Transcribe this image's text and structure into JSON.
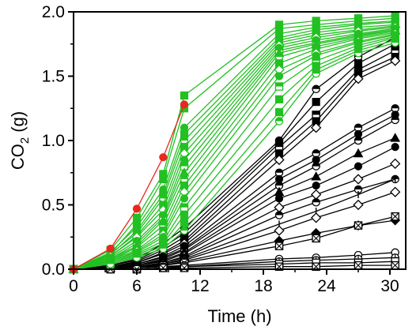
{
  "chart_data": {
    "type": "line",
    "xlabel": "Time (h)",
    "ylabel_main": "CO",
    "ylabel_sub": "2",
    "ylabel_unit": " (g)",
    "xlim": [
      0,
      31.5
    ],
    "ylim": [
      0,
      2.0
    ],
    "xticks": [
      0,
      6,
      12,
      18,
      24,
      30
    ],
    "yticks": [
      0.0,
      0.5,
      1.0,
      1.5,
      2.0
    ],
    "ytick_labels": [
      "0.0",
      "0.5",
      "1.0",
      "1.5",
      "2.0"
    ],
    "xtick_labels": [
      "0",
      "6",
      "12",
      "18",
      "24",
      "30"
    ],
    "grid": false,
    "colors": {
      "red": "#e8281e",
      "green": "#22c022",
      "black": "#000000"
    },
    "x": [
      0,
      3.5,
      6,
      8.5,
      10.5
    ],
    "series_red": [
      {
        "color": "red",
        "marker": "circle-filled",
        "values": [
          0.0,
          0.16,
          0.47,
          0.87,
          1.28
        ]
      }
    ],
    "x_full": [
      0,
      3.5,
      6,
      8.5,
      10.5,
      19.5,
      23,
      27,
      30.5
    ],
    "series_green": [
      {
        "color": "green",
        "marker": "square-filled",
        "values": [
          0.0,
          0.15,
          0.4,
          0.74,
          1.35,
          1.9,
          1.93,
          1.95,
          1.97
        ]
      },
      {
        "color": "green",
        "marker": "square-filled",
        "values": [
          0.0,
          0.12,
          0.35,
          0.7,
          1.25,
          1.87,
          1.9,
          1.93,
          1.95
        ]
      },
      {
        "color": "green",
        "marker": "circle-filled",
        "values": [
          0.0,
          0.13,
          0.33,
          0.62,
          1.1,
          1.83,
          1.88,
          1.91,
          1.93
        ]
      },
      {
        "color": "green",
        "marker": "square-filled",
        "values": [
          0.0,
          0.11,
          0.3,
          0.58,
          1.05,
          1.8,
          1.86,
          1.9,
          1.92
        ]
      },
      {
        "color": "green",
        "marker": "circle-half",
        "values": [
          0.0,
          0.12,
          0.28,
          0.55,
          1.0,
          1.78,
          1.84,
          1.88,
          1.9
        ]
      },
      {
        "color": "green",
        "marker": "square-filled",
        "values": [
          0.0,
          0.1,
          0.26,
          0.5,
          0.95,
          1.76,
          1.82,
          1.86,
          1.89
        ]
      },
      {
        "color": "green",
        "marker": "diamond-open",
        "values": [
          0.0,
          0.1,
          0.25,
          0.46,
          0.9,
          1.74,
          1.8,
          1.85,
          1.88
        ]
      },
      {
        "color": "green",
        "marker": "circle-filled",
        "values": [
          0.0,
          0.09,
          0.22,
          0.42,
          0.85,
          1.72,
          1.78,
          1.83,
          1.87
        ]
      },
      {
        "color": "green",
        "marker": "square-half",
        "values": [
          0.0,
          0.08,
          0.2,
          0.4,
          0.8,
          1.7,
          1.76,
          1.82,
          1.86
        ]
      },
      {
        "color": "green",
        "marker": "triangle-filled",
        "values": [
          0.0,
          0.08,
          0.18,
          0.38,
          0.75,
          1.68,
          1.75,
          1.81,
          1.86
        ]
      },
      {
        "color": "green",
        "marker": "circle-half",
        "values": [
          0.0,
          0.07,
          0.17,
          0.34,
          0.7,
          1.65,
          1.73,
          1.8,
          1.85
        ]
      },
      {
        "color": "green",
        "marker": "square-filled",
        "values": [
          0.0,
          0.07,
          0.15,
          0.3,
          0.65,
          1.6,
          1.71,
          1.79,
          1.84
        ]
      },
      {
        "color": "green",
        "marker": "diamond-open",
        "values": [
          0.0,
          0.06,
          0.14,
          0.27,
          0.6,
          1.55,
          1.68,
          1.77,
          1.83
        ]
      },
      {
        "color": "green",
        "marker": "circle-filled",
        "values": [
          0.0,
          0.06,
          0.13,
          0.25,
          0.55,
          1.5,
          1.66,
          1.76,
          1.82
        ]
      },
      {
        "color": "green",
        "marker": "square-half",
        "values": [
          0.0,
          0.05,
          0.12,
          0.22,
          0.48,
          1.42,
          1.62,
          1.74,
          1.81
        ]
      },
      {
        "color": "green",
        "marker": "square-filled",
        "values": [
          0.0,
          0.05,
          0.11,
          0.2,
          0.42,
          1.32,
          1.58,
          1.72,
          1.8
        ]
      },
      {
        "color": "green",
        "marker": "square-filled",
        "values": [
          0.0,
          0.04,
          0.1,
          0.18,
          0.36,
          1.22,
          1.55,
          1.7,
          1.78
        ]
      },
      {
        "color": "green",
        "marker": "circle-half",
        "values": [
          0.0,
          0.04,
          0.09,
          0.16,
          0.3,
          1.15,
          1.52,
          1.68,
          1.76
        ]
      }
    ],
    "series_black": [
      {
        "marker": "circle-half",
        "values": [
          0.0,
          0.03,
          0.08,
          0.2,
          0.32,
          1.0,
          1.4,
          1.65,
          1.8
        ]
      },
      {
        "marker": "square-filled",
        "values": [
          0.0,
          0.03,
          0.07,
          0.17,
          0.28,
          0.98,
          1.3,
          1.6,
          1.75
        ]
      },
      {
        "marker": "square-half",
        "values": [
          0.0,
          0.02,
          0.06,
          0.15,
          0.25,
          0.95,
          1.2,
          1.55,
          1.7
        ]
      },
      {
        "marker": "square-filled",
        "values": [
          0.0,
          0.02,
          0.05,
          0.13,
          0.22,
          0.9,
          1.15,
          1.52,
          1.65
        ]
      },
      {
        "marker": "diamond-open",
        "values": [
          0.0,
          0.02,
          0.05,
          0.12,
          0.2,
          0.85,
          1.1,
          1.48,
          1.62
        ]
      },
      {
        "marker": "circle-half",
        "values": [
          0.0,
          0.02,
          0.04,
          0.1,
          0.18,
          0.75,
          0.9,
          1.1,
          1.25
        ]
      },
      {
        "marker": "circle-filled",
        "values": [
          0.0,
          0.01,
          0.04,
          0.09,
          0.16,
          0.7,
          0.85,
          1.05,
          1.2
        ]
      },
      {
        "marker": "circle-half",
        "values": [
          0.0,
          0.01,
          0.03,
          0.08,
          0.15,
          0.65,
          0.8,
          1.0,
          1.16
        ]
      },
      {
        "marker": "triangle-filled",
        "values": [
          0.0,
          0.01,
          0.03,
          0.07,
          0.13,
          0.6,
          0.72,
          0.9,
          1.02
        ]
      },
      {
        "marker": "circle-filled",
        "values": [
          0.0,
          0.01,
          0.03,
          0.06,
          0.12,
          0.55,
          0.65,
          0.8,
          0.95
        ]
      },
      {
        "marker": "diamond-open",
        "values": [
          0.0,
          0.01,
          0.02,
          0.05,
          0.1,
          0.48,
          0.58,
          0.7,
          0.82
        ]
      },
      {
        "marker": "circle-half",
        "values": [
          0.0,
          0.01,
          0.02,
          0.05,
          0.09,
          0.42,
          0.52,
          0.62,
          0.7
        ]
      },
      {
        "marker": "tick",
        "values": [
          0.0,
          0.01,
          0.02,
          0.04,
          0.08,
          0.35,
          0.45,
          0.58,
          0.7
        ]
      },
      {
        "marker": "diamond-open",
        "values": [
          0.0,
          0.01,
          0.02,
          0.04,
          0.07,
          0.3,
          0.4,
          0.5,
          0.6
        ]
      },
      {
        "marker": "diamond-filled",
        "values": [
          0.0,
          0.01,
          0.02,
          0.03,
          0.06,
          0.22,
          0.28,
          0.34,
          0.38
        ]
      },
      {
        "marker": "square-x",
        "values": [
          0.0,
          0.01,
          0.01,
          0.03,
          0.05,
          0.18,
          0.24,
          0.34,
          0.41
        ]
      },
      {
        "marker": "circle-open",
        "values": [
          0.0,
          0.0,
          0.01,
          0.02,
          0.03,
          0.08,
          0.09,
          0.11,
          0.13
        ]
      },
      {
        "marker": "circle-plus",
        "values": [
          0.0,
          0.0,
          0.01,
          0.02,
          0.02,
          0.06,
          0.07,
          0.08,
          0.09
        ]
      },
      {
        "marker": "square-open",
        "values": [
          0.0,
          0.0,
          0.0,
          0.01,
          0.02,
          0.04,
          0.05,
          0.05,
          0.06
        ]
      },
      {
        "marker": "square-x",
        "values": [
          0.0,
          0.0,
          0.0,
          0.01,
          0.01,
          0.02,
          0.02,
          0.03,
          0.03
        ]
      }
    ]
  }
}
